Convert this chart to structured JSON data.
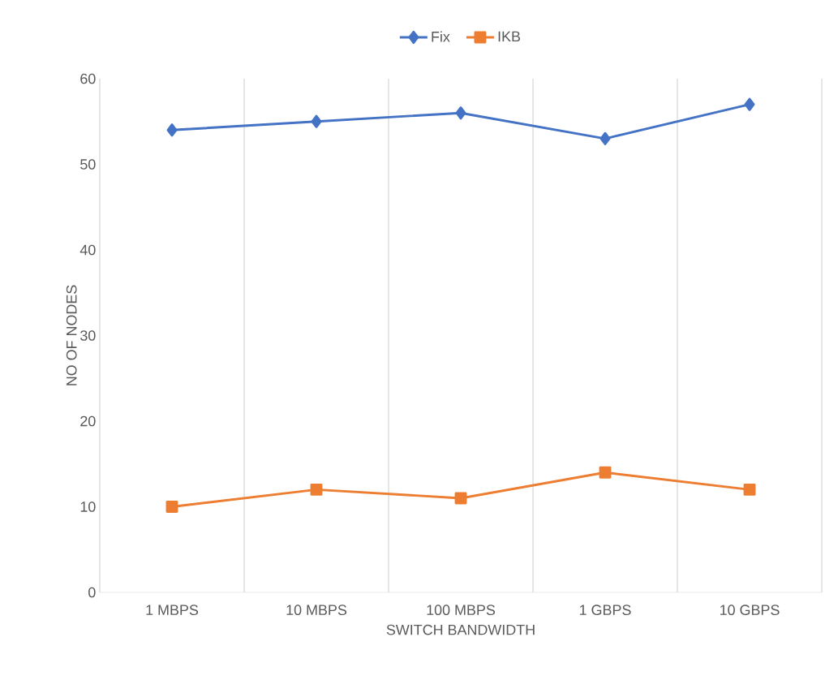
{
  "chart_data": {
    "type": "line",
    "xlabel": "SWITCH BANDWIDTH",
    "ylabel": "NO OF NODES",
    "categories": [
      "1 MBPS",
      "10 MBPS",
      "100 MBPS",
      "1 GBPS",
      "10 GBPS"
    ],
    "series": [
      {
        "name": "Fix",
        "color": "#4472c4",
        "marker": "diamond",
        "values": [
          54,
          55,
          56,
          53,
          57
        ]
      },
      {
        "name": "IKB",
        "color": "#ed7d31",
        "marker": "square",
        "values": [
          10,
          12,
          11,
          14,
          12
        ]
      }
    ],
    "ylim": [
      0,
      60
    ],
    "yticks": [
      0,
      10,
      20,
      30,
      40,
      50,
      60
    ],
    "grid": "x",
    "legend": "top",
    "line_style": "solid"
  }
}
